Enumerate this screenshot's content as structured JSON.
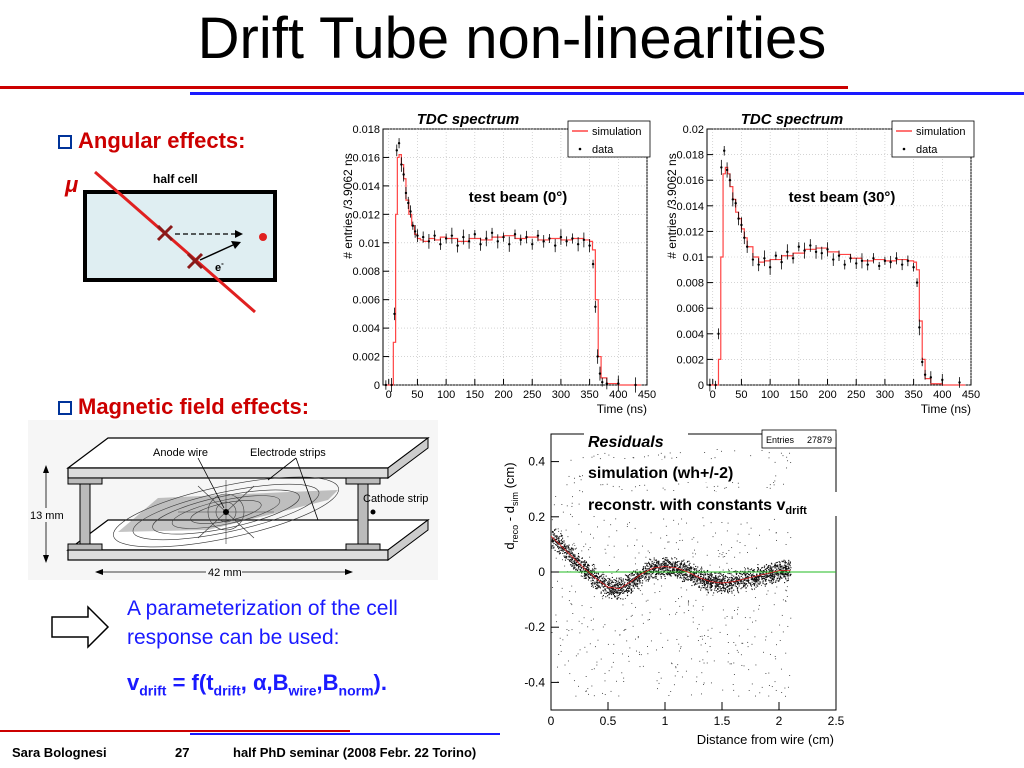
{
  "slide": {
    "title": "Drift Tube non-linearities",
    "bullet_angular": "Angular effects:",
    "bullet_magnetic": "Magnetic field effects:",
    "param_line1": "A parameterization of the cell",
    "param_line2": "response can be used:",
    "formula": {
      "v": "v",
      "drift": "drift",
      "eq": " = f(t",
      "drift2": "drift",
      "alpha": ", α,B",
      "wire": "wire",
      "comma": ",B",
      "norm": "norm",
      "end": ")."
    }
  },
  "cell_diagram": {
    "mu": "μ",
    "label": "half cell",
    "electron": "e",
    "electron_sup": "-"
  },
  "cell_drawing": {
    "anode": "Anode wire",
    "electrode": "Electrode strips",
    "cathode": "Cathode strip",
    "height": "13 mm",
    "width": "42 mm"
  },
  "footer": {
    "author": "Sara Bolognesi",
    "page": "27",
    "event": "half PhD seminar (2008 Febr. 22 Torino)"
  },
  "chart_data": [
    {
      "type": "line",
      "title": "TDC spectrum",
      "annotation": "test beam (0°)",
      "xlabel": "Time (ns)",
      "ylabel": "# entries /3.9062 ns",
      "xlim": [
        -10,
        450
      ],
      "ylim": [
        0,
        0.018
      ],
      "xticks": [
        0,
        50,
        100,
        150,
        200,
        250,
        300,
        350,
        400,
        450
      ],
      "yticks": [
        0,
        0.002,
        0.004,
        0.006,
        0.008,
        0.01,
        0.012,
        0.014,
        0.016,
        0.018
      ],
      "ytick_labels": [
        "0",
        "0.002",
        "0.004",
        "0.006",
        "0.008",
        "0.01",
        "0.012",
        "0.014",
        "0.016",
        "0.018"
      ],
      "legend": [
        "simulation",
        "data"
      ],
      "legend_position": "top-right",
      "series": [
        {
          "name": "simulation",
          "color": "#ff4444",
          "x": [
            -5,
            5,
            8,
            12,
            15,
            18,
            22,
            26,
            30,
            35,
            40,
            45,
            50,
            55,
            60,
            70,
            80,
            90,
            100,
            120,
            140,
            160,
            180,
            200,
            220,
            240,
            260,
            280,
            300,
            320,
            340,
            350,
            355,
            360,
            365,
            370,
            380,
            400,
            440
          ],
          "y": [
            0,
            0,
            0.003,
            0.012,
            0.016,
            0.0162,
            0.0155,
            0.0145,
            0.013,
            0.012,
            0.0112,
            0.0106,
            0.0103,
            0.0102,
            0.0101,
            0.0103,
            0.0102,
            0.0104,
            0.0103,
            0.0101,
            0.0103,
            0.0102,
            0.0104,
            0.0105,
            0.0103,
            0.0104,
            0.0102,
            0.0103,
            0.0102,
            0.0103,
            0.0102,
            0.0101,
            0.0095,
            0.006,
            0.002,
            0.0005,
            0.0001,
            0,
            0
          ]
        },
        {
          "name": "data",
          "color": "#000000",
          "x": [
            -5,
            5,
            10,
            14,
            18,
            22,
            26,
            30,
            34,
            38,
            42,
            46,
            50,
            60,
            70,
            80,
            90,
            100,
            110,
            120,
            130,
            140,
            150,
            160,
            170,
            180,
            190,
            200,
            210,
            220,
            230,
            240,
            250,
            260,
            270,
            280,
            290,
            300,
            310,
            320,
            330,
            340,
            350,
            356,
            360,
            364,
            368,
            372,
            380,
            400,
            430
          ],
          "y": [
            0,
            0,
            0.005,
            0.0165,
            0.017,
            0.0155,
            0.0148,
            0.0135,
            0.0128,
            0.0122,
            0.0112,
            0.0108,
            0.0105,
            0.0104,
            0.0101,
            0.0105,
            0.0099,
            0.0103,
            0.0105,
            0.0098,
            0.0104,
            0.0101,
            0.0106,
            0.0099,
            0.0103,
            0.0107,
            0.0101,
            0.0104,
            0.0099,
            0.0106,
            0.0102,
            0.0104,
            0.0099,
            0.0105,
            0.0101,
            0.0103,
            0.0098,
            0.0104,
            0.0101,
            0.0103,
            0.0099,
            0.0102,
            0.0098,
            0.0085,
            0.0055,
            0.002,
            0.0008,
            0.0002,
            0.0001,
            0.0001,
            0
          ]
        }
      ]
    },
    {
      "type": "line",
      "title": "TDC spectrum",
      "annotation": "test beam (30°)",
      "xlabel": "Time (ns)",
      "ylabel": "# entries /3.9062 ns",
      "xlim": [
        -10,
        450
      ],
      "ylim": [
        0,
        0.02
      ],
      "xticks": [
        0,
        50,
        100,
        150,
        200,
        250,
        300,
        350,
        400,
        450
      ],
      "yticks": [
        0,
        0.002,
        0.004,
        0.006,
        0.008,
        0.01,
        0.012,
        0.014,
        0.016,
        0.018,
        0.02
      ],
      "ytick_labels": [
        "0",
        "0.002",
        "0.004",
        "0.006",
        "0.008",
        "0.01",
        "0.012",
        "0.014",
        "0.016",
        "0.018",
        "0.02"
      ],
      "legend": [
        "simulation",
        "data"
      ],
      "legend_position": "top-right",
      "series": [
        {
          "name": "simulation",
          "color": "#ff4444",
          "x": [
            -5,
            5,
            10,
            14,
            18,
            22,
            26,
            30,
            35,
            40,
            45,
            50,
            55,
            60,
            70,
            80,
            90,
            100,
            120,
            140,
            160,
            180,
            200,
            220,
            240,
            260,
            280,
            300,
            320,
            340,
            350,
            355,
            360,
            365,
            370,
            380,
            400,
            440
          ],
          "y": [
            0,
            0,
            0.002,
            0.01,
            0.0165,
            0.017,
            0.0165,
            0.0155,
            0.0145,
            0.0135,
            0.013,
            0.0122,
            0.0115,
            0.0108,
            0.01,
            0.0096,
            0.0097,
            0.0098,
            0.0101,
            0.0103,
            0.0106,
            0.0107,
            0.0104,
            0.0102,
            0.0099,
            0.0097,
            0.0098,
            0.0097,
            0.0098,
            0.0097,
            0.0096,
            0.009,
            0.005,
            0.002,
            0.0005,
            0.0001,
            0,
            0
          ]
        },
        {
          "name": "data",
          "color": "#000000",
          "x": [
            -5,
            5,
            10,
            15,
            20,
            25,
            30,
            35,
            40,
            45,
            50,
            55,
            60,
            70,
            80,
            90,
            100,
            110,
            120,
            130,
            140,
            150,
            160,
            170,
            180,
            190,
            200,
            210,
            220,
            230,
            240,
            250,
            260,
            270,
            280,
            290,
            300,
            310,
            320,
            330,
            340,
            350,
            356,
            360,
            365,
            370,
            380,
            400,
            430
          ],
          "y": [
            0,
            0,
            0.004,
            0.017,
            0.0183,
            0.0168,
            0.016,
            0.0145,
            0.0142,
            0.013,
            0.0125,
            0.0115,
            0.0108,
            0.0098,
            0.0094,
            0.0099,
            0.0092,
            0.0101,
            0.0096,
            0.0104,
            0.0099,
            0.0108,
            0.0105,
            0.0109,
            0.0104,
            0.0103,
            0.0106,
            0.0098,
            0.0101,
            0.0094,
            0.0099,
            0.0095,
            0.0097,
            0.0094,
            0.0099,
            0.0093,
            0.0097,
            0.0096,
            0.0099,
            0.0094,
            0.0097,
            0.0092,
            0.008,
            0.0045,
            0.0018,
            0.0008,
            0.0006,
            0.0004,
            0.0002
          ]
        }
      ]
    },
    {
      "type": "scatter",
      "title": "Residuals",
      "annotations": [
        "simulation (wh+/-2)",
        "reconstr. with constants v"
      ],
      "annotation_sub": "drift",
      "stats": {
        "label": "Entries",
        "value": "27879"
      },
      "xlabel": "Distance from wire (cm)",
      "ylabel_parts": {
        "a": "d",
        "a_sub": "reco",
        "b": " - d",
        "b_sub": "sim",
        "c": " (cm)"
      },
      "xlim": [
        0,
        2.5
      ],
      "ylim": [
        -0.5,
        0.5
      ],
      "xticks": [
        0,
        0.5,
        1,
        1.5,
        2,
        2.5
      ],
      "xtick_labels": [
        "0",
        "0.5",
        "1",
        "1.5",
        "2",
        "2.5"
      ],
      "yticks": [
        -0.4,
        -0.2,
        0,
        0.2,
        0.4
      ],
      "ytick_labels": [
        "-0.4",
        "-0.2",
        "0",
        "0.2",
        "0.4"
      ],
      "zero_line_color": "#22bb22",
      "band_center": {
        "x": [
          0,
          0.1,
          0.2,
          0.3,
          0.4,
          0.5,
          0.6,
          0.7,
          0.8,
          0.9,
          1.0,
          1.1,
          1.2,
          1.3,
          1.4,
          1.5,
          1.6,
          1.7,
          1.8,
          1.9,
          2.0,
          2.1
        ],
        "y": [
          0.13,
          0.09,
          0.05,
          0.01,
          -0.025,
          -0.055,
          -0.06,
          -0.035,
          -0.005,
          0.015,
          0.02,
          0.015,
          0.0,
          -0.02,
          -0.035,
          -0.04,
          -0.035,
          -0.025,
          -0.015,
          -0.005,
          0.005,
          0.005
        ]
      },
      "x_max_data": 2.1
    }
  ]
}
